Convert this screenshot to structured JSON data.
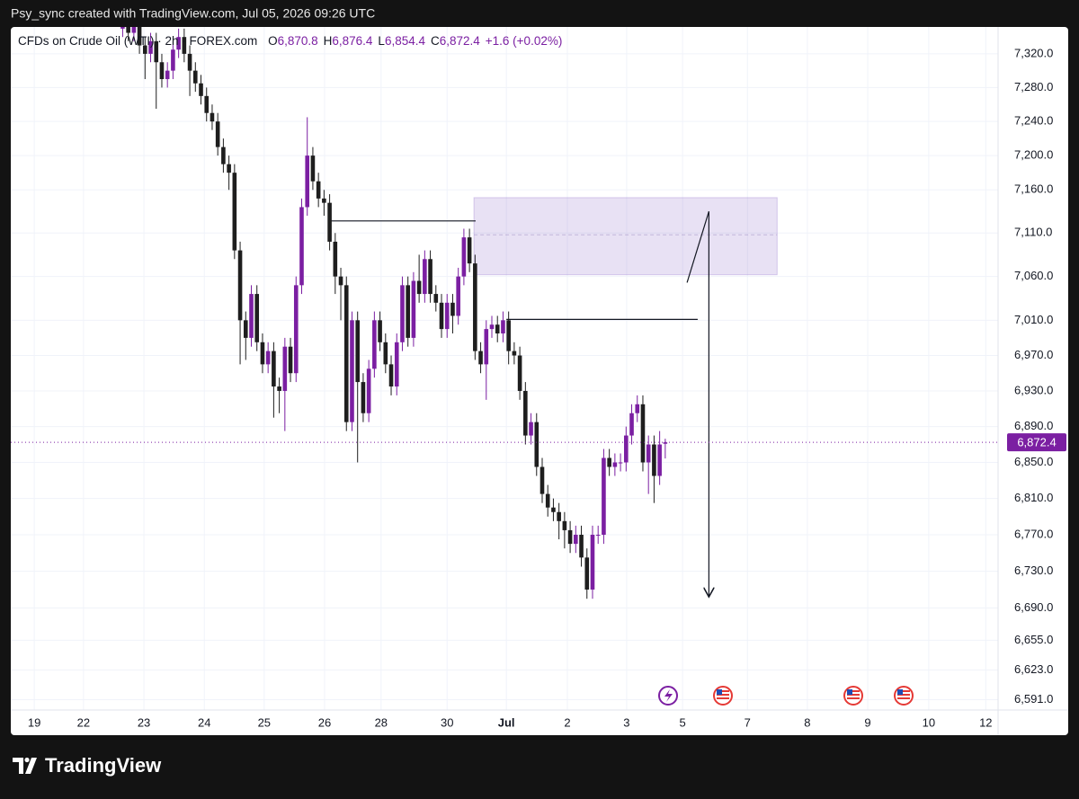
{
  "header": {
    "attribution": "Psy_sync created with TradingView.com, Jul 05, 2026 09:26 UTC"
  },
  "footer": {
    "brand": "TradingView"
  },
  "chart_data": {
    "type": "candlestick",
    "title": "CFDs on Crude Oil (WTI) · 2h · FOREX.com",
    "ohlc_legend": [
      {
        "key": "O",
        "value": "6,870.8"
      },
      {
        "key": "H",
        "value": "6,876.4"
      },
      {
        "key": "L",
        "value": "6,854.4"
      },
      {
        "key": "C",
        "value": "6,872.4"
      }
    ],
    "change": "+1.6 (+0.02%)",
    "x": [
      20,
      21,
      22,
      23,
      24,
      25,
      26,
      27,
      28,
      29,
      30,
      31,
      32,
      33,
      34,
      35,
      36,
      37,
      38,
      39,
      40,
      41,
      42,
      43,
      44,
      45,
      46,
      47,
      48,
      49,
      50,
      51,
      52,
      53,
      54,
      55,
      56,
      57,
      58,
      59,
      60,
      61,
      62,
      63,
      64,
      65,
      66,
      67,
      68,
      69,
      70,
      71,
      72,
      73,
      74,
      75,
      76,
      77,
      78,
      79,
      80,
      81,
      82,
      83,
      84,
      85,
      86,
      87,
      88,
      89,
      90,
      91,
      92,
      93,
      94,
      95,
      96,
      97,
      98,
      99,
      100,
      101,
      102,
      103,
      104,
      105,
      106,
      107,
      108,
      109,
      110,
      111,
      112,
      113,
      114,
      115,
      116,
      117
    ],
    "open": [
      7350,
      7370,
      7345,
      7360,
      7330,
      7320,
      7335,
      7310,
      7290,
      7300,
      7325,
      7340,
      7320,
      7300,
      7285,
      7270,
      7250,
      7240,
      7210,
      7190,
      7180,
      7090,
      7010,
      6990,
      7040,
      6985,
      6960,
      6975,
      6935,
      6930,
      6980,
      6950,
      7050,
      7140,
      7200,
      7170,
      7150,
      7145,
      7100,
      7060,
      7050,
      6895,
      7010,
      6940,
      6905,
      6955,
      7010,
      6985,
      6960,
      6935,
      6985,
      7050,
      6990,
      7055,
      7040,
      7080,
      7040,
      7030,
      7000,
      7030,
      7015,
      7060,
      7105,
      7075,
      6975,
      6960,
      7000,
      7005,
      6995,
      7010,
      6975,
      6970,
      6930,
      6880,
      6895,
      6845,
      6815,
      6800,
      6795,
      6785,
      6775,
      6760,
      6770,
      6745,
      6710,
      6770,
      6770,
      6855,
      6845,
      6850,
      6850,
      6880,
      6905,
      6915,
      6850,
      6870,
      6835,
      6870.8
    ],
    "high": [
      7380,
      7380,
      7370,
      7370,
      7340,
      7345,
      7345,
      7320,
      7310,
      7335,
      7350,
      7350,
      7330,
      7310,
      7295,
      7280,
      7260,
      7250,
      7220,
      7200,
      7190,
      7100,
      7020,
      7050,
      7050,
      6995,
      6985,
      6985,
      6945,
      6990,
      6990,
      7060,
      7150,
      7245,
      7210,
      7180,
      7160,
      7155,
      7110,
      7070,
      7060,
      7020,
      7020,
      6950,
      6965,
      7020,
      7020,
      6995,
      6970,
      6995,
      7060,
      7060,
      7065,
      7085,
      7090,
      7090,
      7050,
      7040,
      7040,
      7040,
      7070,
      7115,
      7115,
      7085,
      6985,
      7010,
      7015,
      7015,
      7020,
      7020,
      6985,
      6980,
      6940,
      6905,
      6905,
      6855,
      6825,
      6810,
      6805,
      6795,
      6785,
      6780,
      6780,
      6755,
      6780,
      6780,
      6865,
      6865,
      6860,
      6860,
      6890,
      6915,
      6925,
      6925,
      6880,
      6880,
      6885,
      6876.4
    ],
    "low": [
      7340,
      7335,
      7335,
      7320,
      7290,
      7310,
      7255,
      7280,
      7280,
      7290,
      7315,
      7310,
      7270,
      7275,
      7260,
      7240,
      7230,
      7200,
      7180,
      7160,
      7080,
      6960,
      6965,
      6980,
      6975,
      6950,
      6950,
      6900,
      6905,
      6885,
      6940,
      6940,
      7040,
      7130,
      7160,
      7140,
      7130,
      7090,
      7040,
      7010,
      6885,
      6885,
      6850,
      6895,
      6895,
      6945,
      6975,
      6950,
      6925,
      6925,
      6975,
      6980,
      6980,
      7030,
      7030,
      7030,
      7020,
      6990,
      6990,
      6995,
      7005,
      7050,
      7065,
      6965,
      6950,
      6920,
      6990,
      6985,
      6985,
      6960,
      6960,
      6920,
      6870,
      6870,
      6835,
      6805,
      6790,
      6785,
      6765,
      6755,
      6750,
      6750,
      6735,
      6700,
      6700,
      6760,
      6760,
      6835,
      6835,
      6840,
      6840,
      6870,
      6895,
      6840,
      6815,
      6805,
      6825,
      6854.4
    ],
    "close": [
      7370,
      7345,
      7360,
      7330,
      7320,
      7335,
      7310,
      7290,
      7300,
      7325,
      7340,
      7320,
      7300,
      7285,
      7270,
      7250,
      7240,
      7210,
      7190,
      7180,
      7090,
      7010,
      6990,
      7040,
      6985,
      6960,
      6975,
      6935,
      6930,
      6980,
      6950,
      7050,
      7140,
      7200,
      7170,
      7150,
      7145,
      7100,
      7060,
      7050,
      6895,
      7010,
      6940,
      6905,
      6955,
      7010,
      6985,
      6960,
      6935,
      6985,
      7050,
      6990,
      7055,
      7040,
      7080,
      7040,
      7030,
      7000,
      7030,
      7015,
      7060,
      7105,
      7075,
      6975,
      6960,
      7000,
      7005,
      6995,
      7010,
      6975,
      6970,
      6930,
      6880,
      6895,
      6845,
      6815,
      6800,
      6795,
      6785,
      6775,
      6760,
      6770,
      6745,
      6710,
      6770,
      6770,
      6855,
      6845,
      6850,
      6850,
      6880,
      6905,
      6915,
      6850,
      6870,
      6835,
      6870,
      6872.4
    ],
    "up_color": "#7b1fa2",
    "down_color": "#1e1e1e",
    "xlim": [
      0,
      176.5
    ],
    "xticks": [
      {
        "value": 4.2,
        "label": "19"
      },
      {
        "value": 13,
        "label": "22"
      },
      {
        "value": 23.8,
        "label": "23"
      },
      {
        "value": 34.6,
        "label": "24"
      },
      {
        "value": 45.3,
        "label": "25"
      },
      {
        "value": 56.1,
        "label": "26"
      },
      {
        "value": 66.2,
        "label": "28"
      },
      {
        "value": 78,
        "label": "30"
      },
      {
        "value": 88.6,
        "label": "Jul"
      },
      {
        "value": 99.5,
        "label": "2"
      },
      {
        "value": 110.1,
        "label": "3"
      },
      {
        "value": 120.1,
        "label": "5"
      },
      {
        "value": 131.7,
        "label": "7"
      },
      {
        "value": 142.4,
        "label": "8"
      },
      {
        "value": 153.2,
        "label": "9"
      },
      {
        "value": 164.1,
        "label": "10"
      },
      {
        "value": 174.3,
        "label": "12"
      }
    ],
    "ylim": [
      6580,
      7352
    ],
    "log_scale": true,
    "yticks": [
      {
        "value": 7320,
        "label": "7,320.0"
      },
      {
        "value": 7280,
        "label": "7,280.0"
      },
      {
        "value": 7240,
        "label": "7,240.0"
      },
      {
        "value": 7200,
        "label": "7,200.0"
      },
      {
        "value": 7160,
        "label": "7,160.0"
      },
      {
        "value": 7110,
        "label": "7,110.0"
      },
      {
        "value": 7060,
        "label": "7,060.0"
      },
      {
        "value": 7010,
        "label": "7,010.0"
      },
      {
        "value": 6970,
        "label": "6,970.0"
      },
      {
        "value": 6930,
        "label": "6,930.0"
      },
      {
        "value": 6890,
        "label": "6,890.0"
      },
      {
        "value": 6850,
        "label": "6,850.0"
      },
      {
        "value": 6810,
        "label": "6,810.0"
      },
      {
        "value": 6770,
        "label": "6,770.0"
      },
      {
        "value": 6730,
        "label": "6,730.0"
      },
      {
        "value": 6690,
        "label": "6,690.0"
      },
      {
        "value": 6655,
        "label": "6,655.0"
      },
      {
        "value": 6623,
        "label": "6,623.0"
      },
      {
        "value": 6591,
        "label": "6,591.0"
      }
    ],
    "grid": true,
    "last_price": {
      "value": 6872.4,
      "label": "6,872.4"
    },
    "zones": [
      {
        "x": [
          82.8,
          137.0
        ],
        "y": [
          7062,
          7151
        ],
        "mid": 7108
      }
    ],
    "lines": [
      {
        "x": [
          57.1,
          83.1
        ],
        "y": [
          7124,
          7124
        ]
      },
      {
        "x": [
          88.6,
          122.8
        ],
        "y": [
          7011,
          7011
        ]
      },
      {
        "x": [
          120.9,
          124.8
        ],
        "y": [
          7053,
          7135
        ]
      },
      {
        "x": [
          124.8,
          124.8
        ],
        "y": [
          7135,
          6702
        ]
      }
    ]
  }
}
